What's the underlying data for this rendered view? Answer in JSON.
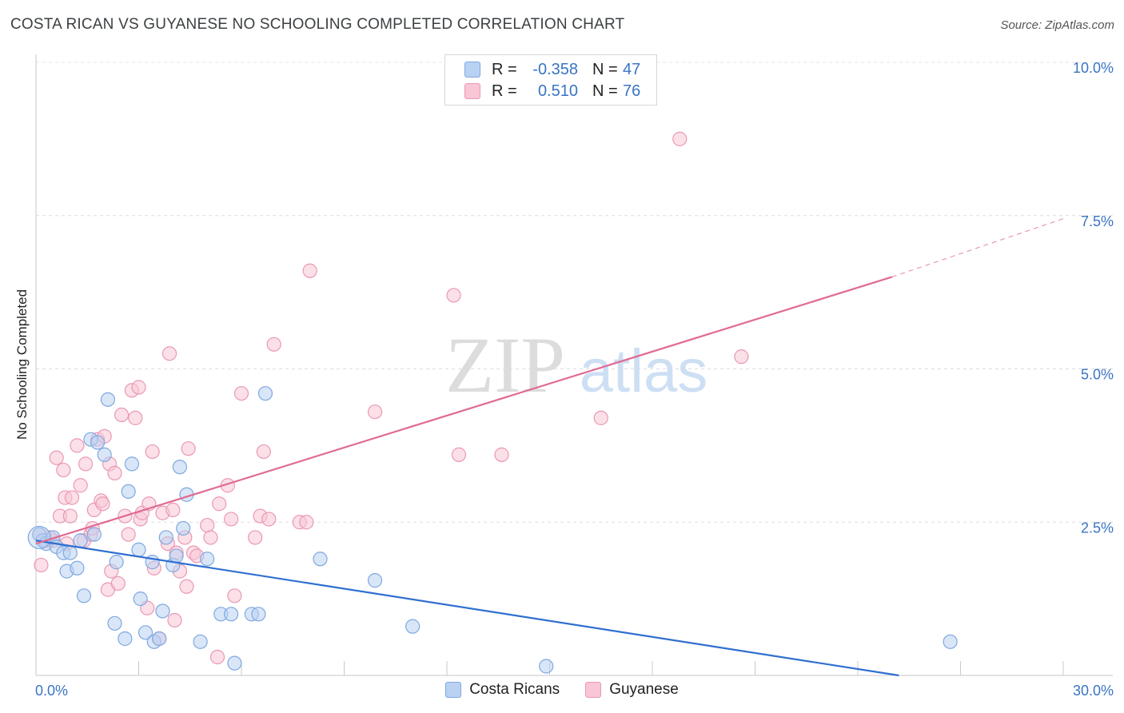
{
  "title": "COSTA RICAN VS GUYANESE NO SCHOOLING COMPLETED CORRELATION CHART",
  "source": "Source: ZipAtlas.com",
  "watermark": {
    "zip": "ZIP",
    "atlas": "atlas"
  },
  "legend": {
    "rows": [
      {
        "r_label": "R =",
        "r_value": "-0.358",
        "n_label": "N =",
        "n_value": "47"
      },
      {
        "r_label": "R =",
        "r_value": "0.510",
        "n_label": "N =",
        "n_value": "76"
      }
    ]
  },
  "bottom_legend": [
    "Costa Ricans",
    "Guyanese"
  ],
  "colors": {
    "blue_fill": "#b9d1f3",
    "blue_stroke": "#7ea8e0",
    "blue_line": "#2f6fd0",
    "pink_fill": "#f8c6d5",
    "pink_stroke": "#eb98b3",
    "pink_line": "#e06a92",
    "axis_text": "#3a74c4"
  },
  "chart_data": {
    "type": "scatter",
    "title": "COSTA RICAN VS GUYANESE NO SCHOOLING COMPLETED CORRELATION CHART",
    "xlabel": "",
    "ylabel": "No Schooling Completed",
    "xlim": [
      0,
      30
    ],
    "ylim": [
      0,
      10
    ],
    "x_tick_labels": [
      "0.0%",
      "30.0%"
    ],
    "y_tick_labels": [
      "2.5%",
      "5.0%",
      "7.5%",
      "10.0%"
    ],
    "y_ticks": [
      2.5,
      5.0,
      7.5,
      10.0
    ],
    "grid": true,
    "legend_position": "top-center",
    "series": [
      {
        "name": "Costa Ricans",
        "r": -0.358,
        "n": 47,
        "trend": {
          "x": [
            0,
            25.2
          ],
          "y": [
            2.2,
            0.0
          ]
        },
        "points": [
          [
            0.1,
            2.3
          ],
          [
            0.2,
            2.2
          ],
          [
            0.3,
            2.15
          ],
          [
            0.5,
            2.25
          ],
          [
            0.6,
            2.1
          ],
          [
            0.8,
            2.0
          ],
          [
            0.9,
            1.7
          ],
          [
            1.0,
            2.0
          ],
          [
            1.2,
            1.75
          ],
          [
            1.3,
            2.2
          ],
          [
            1.4,
            1.3
          ],
          [
            1.6,
            3.85
          ],
          [
            1.7,
            2.3
          ],
          [
            1.8,
            3.8
          ],
          [
            2.0,
            3.6
          ],
          [
            2.1,
            4.5
          ],
          [
            2.3,
            0.85
          ],
          [
            2.35,
            1.85
          ],
          [
            2.6,
            0.6
          ],
          [
            2.7,
            3.0
          ],
          [
            2.8,
            3.45
          ],
          [
            3.0,
            2.05
          ],
          [
            3.05,
            1.25
          ],
          [
            3.2,
            0.7
          ],
          [
            3.4,
            1.85
          ],
          [
            3.45,
            0.55
          ],
          [
            3.6,
            0.6
          ],
          [
            3.7,
            1.05
          ],
          [
            3.8,
            2.25
          ],
          [
            4.0,
            1.8
          ],
          [
            4.1,
            1.95
          ],
          [
            4.2,
            3.4
          ],
          [
            4.3,
            2.4
          ],
          [
            4.4,
            2.95
          ],
          [
            4.8,
            0.55
          ],
          [
            5.0,
            1.9
          ],
          [
            5.4,
            1.0
          ],
          [
            5.7,
            1.0
          ],
          [
            5.8,
            0.2
          ],
          [
            6.3,
            1.0
          ],
          [
            6.5,
            1.0
          ],
          [
            6.7,
            4.6
          ],
          [
            8.3,
            1.9
          ],
          [
            9.9,
            1.55
          ],
          [
            11.0,
            0.8
          ],
          [
            14.9,
            0.15
          ],
          [
            26.7,
            0.55
          ]
        ]
      },
      {
        "name": "Guyanese",
        "r": 0.51,
        "n": 76,
        "trend": {
          "x": [
            0,
            25.0
          ],
          "y": [
            2.15,
            6.5
          ]
        },
        "trend_dashed": {
          "x": [
            25.0,
            30.0
          ],
          "y": [
            6.5,
            7.45
          ]
        },
        "points": [
          [
            0.1,
            2.3
          ],
          [
            0.15,
            1.8
          ],
          [
            0.3,
            2.2
          ],
          [
            0.5,
            2.2
          ],
          [
            0.6,
            3.55
          ],
          [
            0.7,
            2.6
          ],
          [
            0.8,
            3.35
          ],
          [
            0.85,
            2.9
          ],
          [
            1.0,
            2.6
          ],
          [
            1.05,
            2.9
          ],
          [
            1.2,
            3.75
          ],
          [
            1.3,
            3.1
          ],
          [
            1.4,
            2.2
          ],
          [
            1.45,
            3.45
          ],
          [
            1.6,
            2.3
          ],
          [
            1.65,
            2.4
          ],
          [
            1.7,
            2.7
          ],
          [
            1.8,
            3.85
          ],
          [
            1.9,
            2.85
          ],
          [
            1.95,
            2.8
          ],
          [
            2.1,
            1.4
          ],
          [
            2.15,
            3.45
          ],
          [
            2.2,
            1.7
          ],
          [
            2.3,
            3.3
          ],
          [
            2.4,
            1.5
          ],
          [
            2.5,
            4.25
          ],
          [
            2.6,
            2.6
          ],
          [
            2.7,
            2.3
          ],
          [
            2.8,
            4.65
          ],
          [
            2.9,
            4.2
          ],
          [
            3.0,
            4.7
          ],
          [
            3.05,
            2.55
          ],
          [
            3.1,
            2.65
          ],
          [
            3.25,
            1.1
          ],
          [
            3.3,
            2.8
          ],
          [
            3.4,
            3.65
          ],
          [
            3.45,
            1.75
          ],
          [
            3.6,
            0.6
          ],
          [
            3.7,
            2.65
          ],
          [
            3.85,
            2.15
          ],
          [
            3.9,
            5.25
          ],
          [
            4.0,
            2.7
          ],
          [
            4.05,
            0.9
          ],
          [
            4.1,
            2.0
          ],
          [
            4.2,
            1.7
          ],
          [
            4.35,
            2.25
          ],
          [
            4.4,
            1.45
          ],
          [
            4.45,
            3.7
          ],
          [
            4.6,
            2.0
          ],
          [
            5.0,
            2.45
          ],
          [
            5.1,
            2.25
          ],
          [
            5.3,
            0.3
          ],
          [
            5.35,
            2.8
          ],
          [
            5.6,
            3.1
          ],
          [
            5.7,
            2.55
          ],
          [
            5.8,
            1.3
          ],
          [
            6.0,
            4.6
          ],
          [
            6.4,
            2.25
          ],
          [
            6.55,
            2.6
          ],
          [
            6.65,
            3.65
          ],
          [
            6.95,
            5.4
          ],
          [
            7.7,
            2.5
          ],
          [
            7.9,
            2.5
          ],
          [
            8.0,
            6.6
          ],
          [
            9.9,
            4.3
          ],
          [
            12.2,
            6.2
          ],
          [
            12.35,
            3.6
          ],
          [
            13.6,
            3.6
          ],
          [
            16.5,
            4.2
          ],
          [
            18.8,
            8.75
          ],
          [
            20.6,
            5.2
          ],
          [
            0.4,
            2.25
          ],
          [
            0.9,
            2.15
          ],
          [
            2.0,
            3.9
          ],
          [
            4.7,
            1.95
          ],
          [
            6.8,
            2.55
          ]
        ]
      }
    ]
  }
}
